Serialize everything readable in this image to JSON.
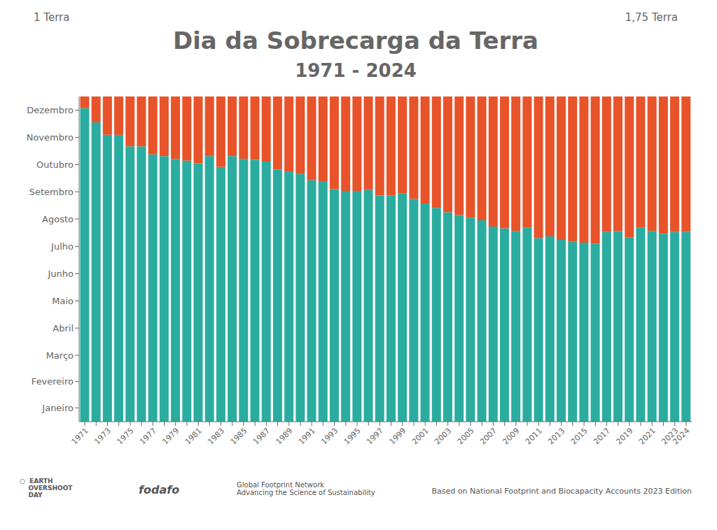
{
  "chart_data": {
    "type": "bar",
    "title": "Dia da Sobrecarga da Terra",
    "subtitle": "1971 - 2024",
    "categories": [
      "1971",
      null,
      "1973",
      null,
      "1975",
      null,
      "1977",
      null,
      "1979",
      null,
      "1981",
      null,
      "1983",
      null,
      "1985",
      null,
      "1987",
      null,
      "1989",
      null,
      "1991",
      null,
      "1993",
      null,
      "1995",
      null,
      "1997",
      null,
      "1999",
      null,
      "2001",
      null,
      "2003",
      null,
      "2005",
      null,
      "2007",
      null,
      "2009",
      null,
      "2011",
      null,
      "2013",
      null,
      "2015",
      null,
      "2017",
      null,
      "2019",
      null,
      "2021",
      null,
      "2023",
      "2024"
    ],
    "series": [
      {
        "color": "#2AADA0",
        "values": [
          352,
          336,
          322,
          322,
          309,
          309,
          300,
          298,
          295,
          293,
          290,
          298,
          286,
          298,
          295,
          294,
          292,
          283,
          281,
          278,
          271,
          270,
          261,
          259,
          259,
          260,
          254,
          254,
          256,
          250,
          245,
          240,
          235,
          232,
          229,
          226,
          219,
          217,
          214,
          218,
          206,
          208,
          204,
          202,
          201,
          200,
          213,
          214,
          207,
          218,
          214,
          211,
          213,
          213
        ]
      },
      {
        "color": "#E8532A",
        "values": [
          13,
          29,
          43,
          43,
          56,
          56,
          65,
          67,
          70,
          72,
          75,
          67,
          79,
          67,
          70,
          71,
          73,
          82,
          84,
          87,
          94,
          95,
          104,
          106,
          106,
          105,
          111,
          111,
          109,
          115,
          120,
          125,
          130,
          133,
          136,
          139,
          146,
          148,
          151,
          147,
          159,
          157,
          161,
          163,
          164,
          165,
          152,
          151,
          158,
          147,
          151,
          154,
          152,
          152
        ]
      }
    ],
    "stacked": true,
    "ylim": [
      0,
      365
    ],
    "yticks": [
      {
        "value": 15.5,
        "label": "Janeiro"
      },
      {
        "value": 45,
        "label": "Fevereiro"
      },
      {
        "value": 74.5,
        "label": "Março"
      },
      {
        "value": 105,
        "label": "Abril"
      },
      {
        "value": 135.5,
        "label": "Maio"
      },
      {
        "value": 166,
        "label": "Junho"
      },
      {
        "value": 196.5,
        "label": "Julho"
      },
      {
        "value": 227.5,
        "label": "Agosto"
      },
      {
        "value": 258,
        "label": "Setembro"
      },
      {
        "value": 288.5,
        "label": "Outubro"
      },
      {
        "value": 319,
        "label": "Novembro"
      },
      {
        "value": 349.5,
        "label": "Dezembro"
      }
    ],
    "grid": false,
    "annotations": [
      "1 Terra",
      "1,75 Terra",
      "Based on National Footprint and Biocapacity Accounts 2023 Edition",
      "○  EARTH\n    OVERSHOOT\n    DAY",
      "fodafo",
      "Global Footprint Network\nAdvancing the Science of Sustainability"
    ]
  }
}
